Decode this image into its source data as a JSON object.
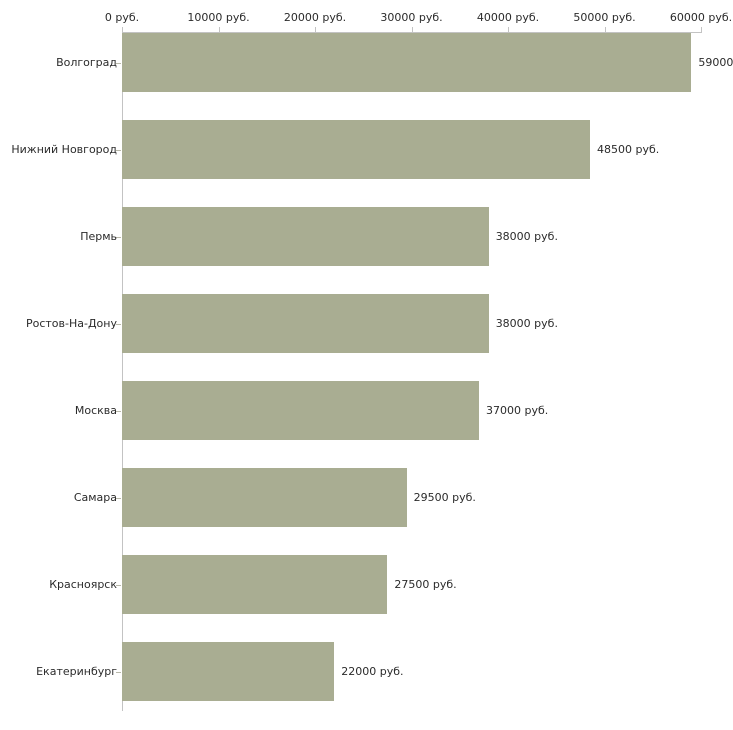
{
  "chart_data": {
    "type": "bar",
    "orientation": "horizontal",
    "title": "",
    "xlabel": "",
    "ylabel": "",
    "unit": "руб.",
    "xlim": [
      0,
      60000
    ],
    "grid": false,
    "legend": null,
    "axis_ticks": {
      "values": [
        0,
        10000,
        20000,
        30000,
        40000,
        50000,
        60000
      ],
      "labels": [
        "0 руб.",
        "10000 руб.",
        "20000 руб.",
        "30000 руб.",
        "40000 руб.",
        "50000 руб.",
        "60000 руб."
      ]
    },
    "categories": [
      "Волгоград",
      "Нижний Новгород",
      "Пермь",
      "Ростов-На-Дону",
      "Москва",
      "Самара",
      "Красноярск",
      "Екатеринбург"
    ],
    "values": [
      59000,
      48500,
      38000,
      38000,
      37000,
      29500,
      27500,
      22000
    ],
    "value_labels": [
      "59000",
      "48500 руб.",
      "38000 руб.",
      "38000 руб.",
      "37000 руб.",
      "29500 руб.",
      "27500 руб.",
      "22000 руб."
    ],
    "colors": {
      "bar_fill": "#a9ad92",
      "axis": "#c3c3c3",
      "text": "#2b2b2b",
      "background": "#ffffff"
    }
  }
}
